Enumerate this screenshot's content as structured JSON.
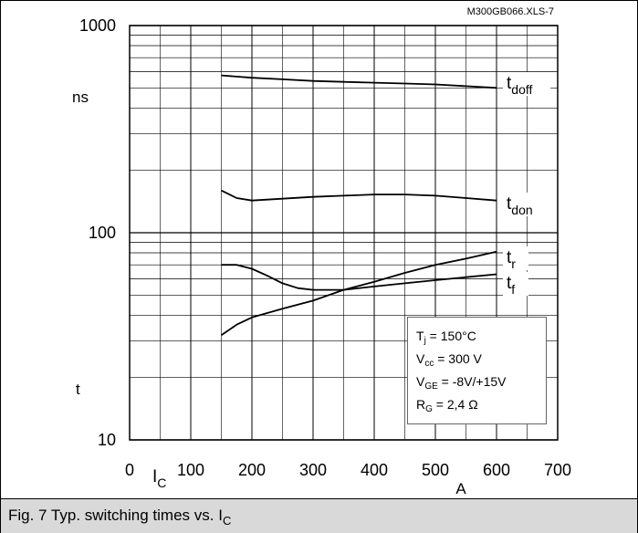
{
  "chart_data": {
    "type": "line",
    "yscale": "log",
    "ylim": [
      10,
      1000
    ],
    "xlim": [
      0,
      700
    ],
    "x_ticks": [
      0,
      100,
      200,
      300,
      400,
      500,
      600,
      700
    ],
    "y_ticks": [
      10,
      100,
      1000
    ],
    "grid": true,
    "source_label": "M300GB066.XLS-7",
    "ylabel_top": "ns",
    "ylabel_bottom": "t",
    "xlabel_left": {
      "main": "I",
      "sub": "C"
    },
    "xlabel_right": "A",
    "series": [
      {
        "name": "tdoff",
        "label_main": "t",
        "label_sub": "doff",
        "x": [
          150,
          200,
          250,
          300,
          350,
          400,
          450,
          500,
          550,
          600
        ],
        "y": [
          575,
          560,
          550,
          540,
          535,
          530,
          525,
          520,
          510,
          500
        ]
      },
      {
        "name": "tdon",
        "label_main": "t",
        "label_sub": "don",
        "x": [
          150,
          175,
          200,
          250,
          300,
          350,
          400,
          450,
          500,
          550,
          600
        ],
        "y": [
          160,
          147,
          143,
          146,
          149,
          151,
          153,
          153,
          151,
          147,
          143
        ]
      },
      {
        "name": "tr",
        "label_main": "t",
        "label_sub": "r",
        "x": [
          150,
          175,
          200,
          250,
          300,
          350,
          400,
          450,
          500,
          550,
          600
        ],
        "y": [
          32,
          36,
          39,
          43,
          47,
          53,
          58,
          64,
          70,
          75,
          81
        ]
      },
      {
        "name": "tf",
        "label_main": "t",
        "label_sub": "f",
        "x": [
          150,
          175,
          200,
          225,
          250,
          275,
          300,
          350,
          400,
          450,
          500,
          550,
          600
        ],
        "y": [
          70,
          70,
          67,
          62,
          57,
          54,
          53,
          53,
          55,
          57,
          59,
          61,
          63
        ]
      }
    ],
    "conditions": [
      {
        "main": "T",
        "sub": "j",
        "rest": " = 150°C"
      },
      {
        "main": "V",
        "sub": "cc",
        "rest": " = 300 V"
      },
      {
        "main": "V",
        "sub": "GE",
        "rest": " = -8V/+15V"
      },
      {
        "main": "R",
        "sub": "G",
        "rest": " = 2,4 Ω"
      }
    ]
  },
  "caption": {
    "main": "Fig. 7 Typ. switching times vs. I",
    "sub": "C"
  }
}
